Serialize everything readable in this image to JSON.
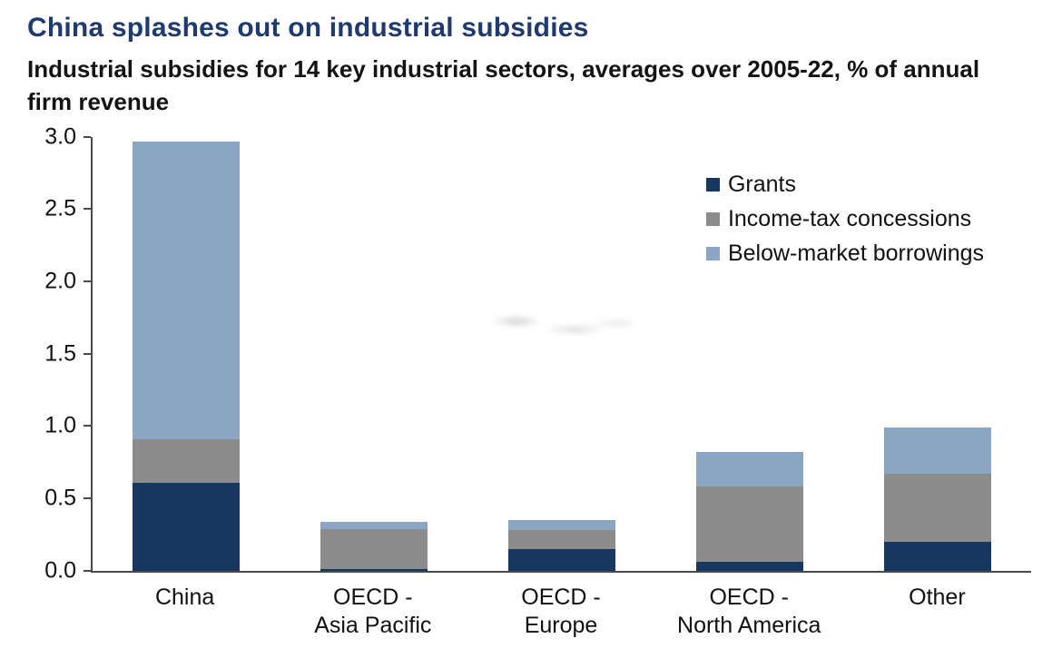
{
  "header": {
    "title": "China splashes out on industrial subsidies",
    "subtitle": "Industrial subsidies for 14 key industrial sectors, averages over 2005-22, % of annual firm revenue"
  },
  "chart_data": {
    "type": "bar",
    "stacked": true,
    "title": "China splashes out on industrial subsidies",
    "subtitle": "Industrial subsidies for 14 key industrial sectors, averages over 2005-22, % of annual firm revenue",
    "categories": [
      "China",
      "OECD -\nAsia Pacific",
      "OECD -\nEurope",
      "OECD -\nNorth America",
      "Other"
    ],
    "series": [
      {
        "name": "Grants",
        "color": "#16375f",
        "values": [
          0.61,
          0.01,
          0.15,
          0.06,
          0.2
        ]
      },
      {
        "name": "Income-tax concessions",
        "color": "#8c8c8c",
        "values": [
          0.3,
          0.28,
          0.13,
          0.52,
          0.47
        ]
      },
      {
        "name": "Below-market borrowings",
        "color": "#8ba6c5",
        "values": [
          2.06,
          0.05,
          0.07,
          0.24,
          0.32
        ]
      }
    ],
    "ylim": [
      0,
      3.0
    ],
    "yticks": [
      0.0,
      0.5,
      1.0,
      1.5,
      2.0,
      2.5,
      3.0
    ],
    "ylabel": "",
    "xlabel": "",
    "grid": false,
    "legend_position": "upper-right"
  },
  "colors": {
    "title": "#1e3a6e",
    "axis": "#4a4a4a",
    "grants": "#16375f",
    "income_tax": "#8c8c8c",
    "below_market": "#8ba6c5"
  }
}
